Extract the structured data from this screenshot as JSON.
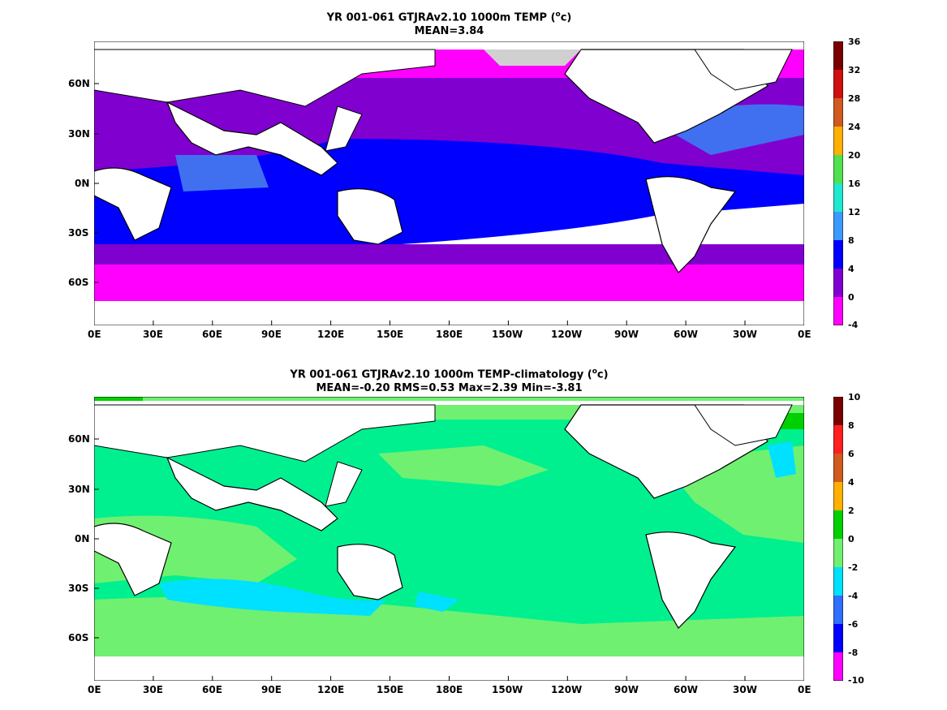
{
  "panels": [
    {
      "title_line1": "YR 001-061 GTJRAv2.10 1000m TEMP (",
      "title_unit_sup": "o",
      "title_unit_tail": "c)",
      "title_line2": "MEAN=3.84",
      "colorbar_ticks": [
        "36",
        "32",
        "28",
        "24",
        "20",
        "16",
        "12",
        "8",
        "4",
        "0",
        "-4"
      ],
      "colorbar_colors": [
        "#7a0000",
        "#c01010",
        "#ff2020",
        "#ff6a20",
        "#ff9e00",
        "#ffd800",
        "#ffff00",
        "#00e060",
        "#20f0b0",
        "#00e8ff",
        "#20b8ff",
        "#3080ff",
        "#4070f0",
        "#0000ff",
        "#8000d0",
        "#ff00ff",
        "#d0d0d0",
        "#606060"
      ]
    },
    {
      "title_line1": "YR 001-061 GTJRAv2.10 1000m TEMP-climatology (",
      "title_unit_sup": "o",
      "title_unit_tail": "c)",
      "title_line2": "MEAN=-0.20   RMS=0.53   Max=2.39   Min=-3.81",
      "colorbar_ticks": [
        "10",
        "8",
        "6",
        "4",
        "2",
        "0",
        "-2",
        "-4",
        "-6",
        "-8",
        "-10"
      ],
      "colorbar_colors": [
        "#7a0000",
        "#c01010",
        "#ff2020",
        "#ff6a20",
        "#ff9e00",
        "#ffd800",
        "#00d000",
        "#70f070",
        "#00f090",
        "#00e0ff",
        "#20b0ff",
        "#3070ff",
        "#0000ff",
        "#8000d0",
        "#ff00ff",
        "#d0d0d0",
        "#606060"
      ]
    }
  ],
  "lon_ticks": [
    "0E",
    "30E",
    "60E",
    "90E",
    "120E",
    "150E",
    "180E",
    "150W",
    "120W",
    "90W",
    "60W",
    "30W",
    "0E"
  ],
  "lat_ticks": [
    "60N",
    "30N",
    "0N",
    "30S",
    "60S"
  ]
}
